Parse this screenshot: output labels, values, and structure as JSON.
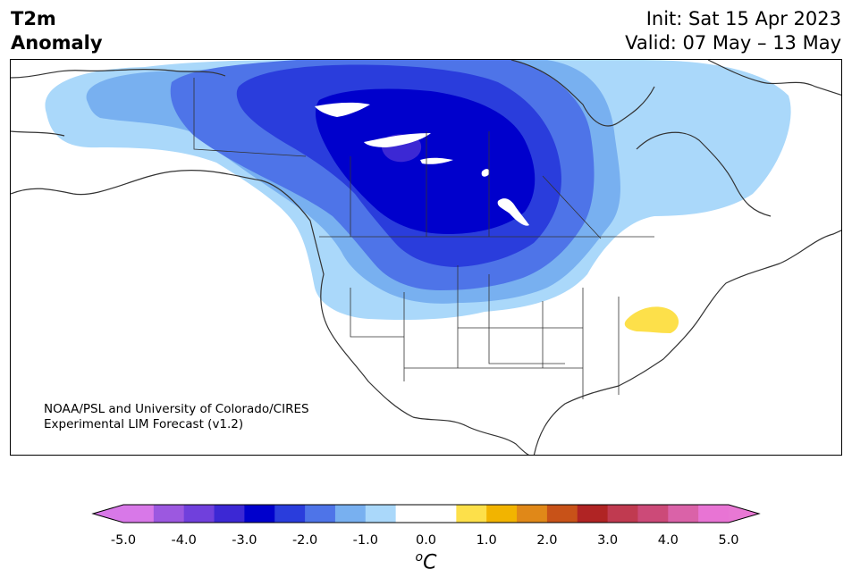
{
  "header": {
    "title_line1": "T2m",
    "title_line2": "Anomaly",
    "init": "Init: Sat 15 Apr 2023",
    "valid": "Valid: 07 May – 13 May"
  },
  "credit": {
    "line1": "NOAA/PSL and University of Colorado/CIRES",
    "line2": "Experimental LIM Forecast (v1.2)"
  },
  "colorbar": {
    "tick_labels": [
      "-5.0",
      "-4.0",
      "-3.0",
      "-2.0",
      "-1.0",
      "0.0",
      "1.0",
      "2.0",
      "3.0",
      "4.0",
      "5.0"
    ],
    "unit_symbol": "o",
    "unit_letter": "C",
    "colors": [
      "#d878e8",
      "#9c58e0",
      "#7040dc",
      "#3c28d4",
      "#0000cc",
      "#2a3ddc",
      "#4e74e8",
      "#78b0f0",
      "#aad8fa",
      "#ffffff",
      "#ffffff",
      "#fde04a",
      "#f2b400",
      "#e08818",
      "#c85218",
      "#b02424",
      "#c03a50",
      "#cc4a78",
      "#da62a8",
      "#e874d4"
    ],
    "under_color": "#d878e8",
    "over_color": "#e878d4"
  },
  "map": {
    "region": "North America",
    "fill_colors": {
      "neg_0_5": "#aad8fa",
      "neg_1_0": "#78b0f0",
      "neg_1_5": "#4e74e8",
      "neg_2_0": "#2a3ddc",
      "neg_2_5": "#0000cc",
      "neg_3_0": "#3c28d4",
      "pos_0_5": "#fde04a",
      "lake": "#ffffff",
      "border": "#333333"
    }
  }
}
